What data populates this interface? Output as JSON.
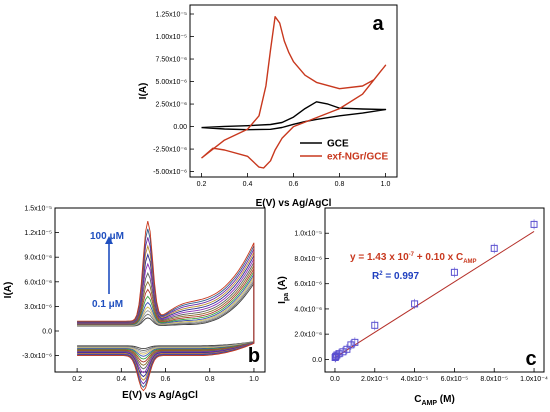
{
  "chart_data": [
    {
      "panel": "a",
      "type": "line",
      "xlabel": "E(V) vs Ag/AgCl",
      "ylabel": "I(A)",
      "xlim": [
        0.15,
        1.05
      ],
      "ylim": [
        -5.6e-06,
        1.35e-05
      ],
      "xticks": [
        0.2,
        0.4,
        0.6,
        0.8,
        1.0
      ],
      "xtick_labels": [
        "0.2",
        "0.4",
        "0.6",
        "0.8",
        "1.0"
      ],
      "yticks": [
        -5e-06,
        -2.5e-06,
        0,
        2.5e-06,
        5e-06,
        7.5e-06,
        1e-05,
        1.25e-05
      ],
      "ytick_labels": [
        "-5.00x10⁻⁶",
        "-2.50x10⁻⁶",
        "0.00",
        "2.50x10⁻⁶",
        "5.00x10⁻⁶",
        "7.50x10⁻⁶",
        "1.00x10⁻⁵",
        "1.25x10⁻⁵"
      ],
      "legend_position": "bottom-right",
      "series": [
        {
          "name": "GCE",
          "color": "#000000",
          "x": [
            0.2,
            0.3,
            0.4,
            0.5,
            0.55,
            0.6,
            0.65,
            0.7,
            0.75,
            0.8,
            0.9,
            1.0,
            0.9,
            0.8,
            0.7,
            0.65,
            0.6,
            0.55,
            0.5,
            0.4,
            0.3,
            0.2
          ],
          "y": [
            -1.1e-07,
            2e-08,
            1e-07,
            2.3e-07,
            4.5e-07,
            1.05e-06,
            2e-06,
            2.75e-06,
            2.5e-06,
            2.05e-06,
            1.95e-06,
            1.9e-06,
            1.5e-06,
            1.2e-06,
            8e-07,
            5.5e-07,
            2.5e-07,
            -1e-07,
            -3e-07,
            -3.5e-07,
            -2.7e-07,
            -1.1e-07
          ]
        },
        {
          "name": "exf-NGr/GCE",
          "color": "#c8381e",
          "x": [
            0.2,
            0.3,
            0.4,
            0.45,
            0.48,
            0.5,
            0.52,
            0.54,
            0.56,
            0.58,
            0.6,
            0.65,
            0.7,
            0.8,
            0.9,
            0.95,
            1.0,
            0.95,
            0.9,
            0.8,
            0.7,
            0.6,
            0.55,
            0.52,
            0.5,
            0.47,
            0.45,
            0.4,
            0.3,
            0.25,
            0.2
          ],
          "y": [
            -3.5e-06,
            -1.5e-06,
            -3e-07,
            1.2e-06,
            4.5e-06,
            8.5e-06,
            1.22e-05,
            1.15e-05,
            9.5e-06,
            8.2e-06,
            7.2e-06,
            5.7e-06,
            4.9e-06,
            4.2e-06,
            4.5e-06,
            5.2e-06,
            6.8e-06,
            5.2e-06,
            3.6e-06,
            2e-06,
            1e-06,
            0,
            -1.3e-06,
            -2.6e-06,
            -3.8e-06,
            -4.6e-06,
            -4.5e-06,
            -3.3e-06,
            -2.6e-06,
            -2.4e-06,
            -3.5e-06
          ]
        }
      ],
      "annotation": "a"
    },
    {
      "panel": "b",
      "type": "line",
      "xlabel": "E(V) vs Ag/AgCl",
      "ylabel": "I(A)",
      "xlim": [
        0.1,
        1.05
      ],
      "ylim": [
        -5e-06,
        1.5e-05
      ],
      "xticks": [
        0.2,
        0.4,
        0.6,
        0.8,
        1.0
      ],
      "xtick_labels": [
        "0.2",
        "0.4",
        "0.6",
        "0.8",
        "1.0"
      ],
      "yticks": [
        -3e-06,
        0,
        3e-06,
        6e-06,
        9e-06,
        1.2e-05,
        1.5e-05
      ],
      "ytick_labels": [
        "-3.0x10⁻⁶",
        "0.0",
        "3.0x10⁻⁶",
        "6.0x10⁻⁶",
        "9.0x10⁻⁶",
        "1.2x10⁻⁵",
        "1.5x10⁻⁵"
      ],
      "concentration_arrow": {
        "from_label": "0.1 μM",
        "to_label": "100 μM",
        "color": "#1f4fbf"
      },
      "curve_peak_currents": [
        1e-06,
        1.4e-06,
        1.8e-06,
        2.2e-06,
        2.7e-06,
        3.4e-06,
        4.2e-06,
        5.1e-06,
        6.1e-06,
        7.2e-06,
        8.3e-06,
        9.3e-06,
        1.03e-05,
        1.13e-05,
        1.22e-05
      ],
      "curve_colors": [
        "#404040",
        "#707070",
        "#a0a0a0",
        "#d4c15a",
        "#3a4fb5",
        "#3aa040",
        "#b03a2e",
        "#8a6b2c",
        "#5f5f5f",
        "#8b2fb8",
        "#2b2b8f",
        "#b89033",
        "#6a2aa8",
        "#2f5f8f",
        "#c8381e"
      ],
      "annotation": "b"
    },
    {
      "panel": "c",
      "type": "scatter",
      "xlabel": "C",
      "xlabel_sub": "AMP",
      "xlabel_unit": " (M)",
      "ylabel": "I",
      "ylabel_sub": "pa",
      "ylabel_unit": " (A)",
      "xlim": [
        -5e-06,
        0.000105
      ],
      "ylim": [
        -1e-06,
        1.2e-05
      ],
      "xticks": [
        0,
        2e-05,
        4e-05,
        6e-05,
        8e-05,
        0.0001
      ],
      "xtick_labels": [
        "0.0",
        "2.0x10⁻⁵",
        "4.0x10⁻⁵",
        "6.0x10⁻⁵",
        "8.0x10⁻⁵",
        "1.0x10⁻⁴"
      ],
      "yticks": [
        0,
        2e-06,
        4e-06,
        6e-06,
        8e-06,
        1e-05
      ],
      "ytick_labels": [
        "0.0",
        "2.0x10⁻⁶",
        "4.0x10⁻⁶",
        "6.0x10⁻⁶",
        "8.0x10⁻⁶",
        "1.0x10⁻⁵"
      ],
      "x": [
        1e-07,
        3e-07,
        5e-07,
        1e-06,
        2e-06,
        4e-06,
        6e-06,
        8e-06,
        1e-05,
        2e-05,
        4e-05,
        6e-05,
        8e-05,
        0.0001
      ],
      "y": [
        1.5e-07,
        2e-07,
        2.5e-07,
        3.5e-07,
        4.5e-07,
        6e-07,
        8e-07,
        1.15e-06,
        1.35e-06,
        2.7e-06,
        4.4e-06,
        6.9e-06,
        8.8e-06,
        1.07e-05
      ],
      "fit": {
        "intercept": 1.43e-07,
        "slope": 0.1
      },
      "equation": {
        "main": "y = 1.43 x 10",
        "exp": "-7",
        "rest": " + 0.10 x C",
        "sub": "AMP"
      },
      "r2": {
        "label": "R",
        "sup": "2",
        "value": " = 0.997"
      },
      "colors": {
        "marker": "#5a4fd0",
        "line": "#b5302a",
        "equation": "#c8381e",
        "r2": "#1f3fbf"
      },
      "annotation": "c"
    }
  ]
}
